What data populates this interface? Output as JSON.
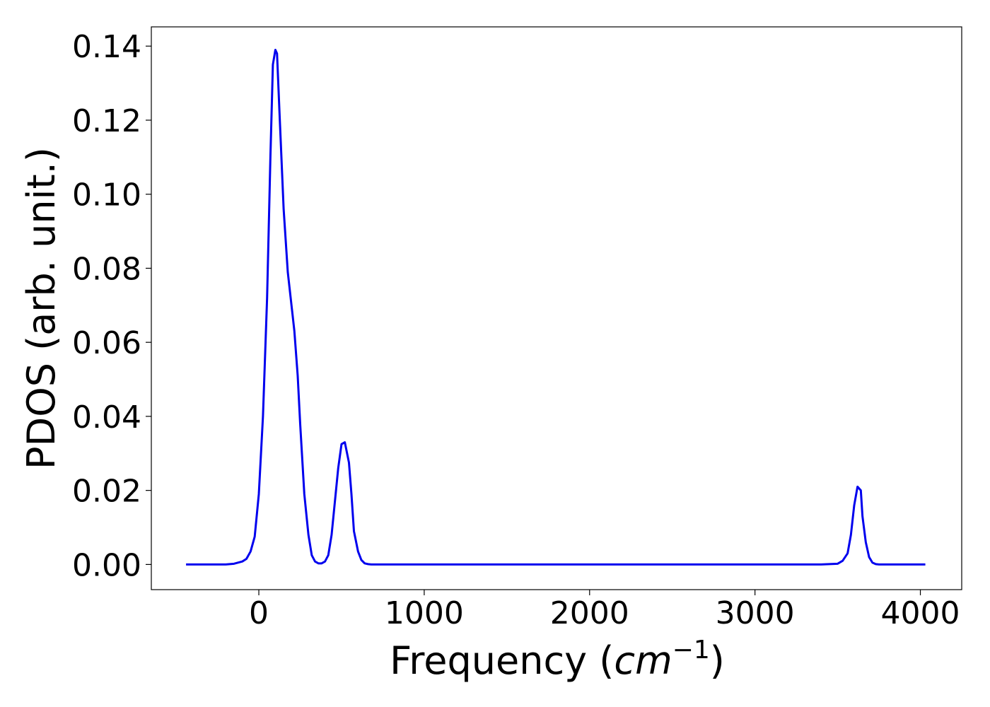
{
  "chart_data": {
    "type": "line",
    "xlabel": "Frequency",
    "xlabel_unit": {
      "open": "(",
      "base": "cm",
      "sup": "−1",
      "close": ")"
    },
    "ylabel": "PDOS (arb. unit.)",
    "xlim": [
      -650,
      4250
    ],
    "ylim": [
      -0.0068,
      0.1452
    ],
    "xticks": [
      0,
      1000,
      2000,
      3000,
      4000
    ],
    "xtick_labels": [
      "0",
      "1000",
      "2000",
      "3000",
      "4000"
    ],
    "yticks": [
      0.0,
      0.02,
      0.04,
      0.06,
      0.08,
      0.1,
      0.12,
      0.14
    ],
    "ytick_labels": [
      "0.00",
      "0.02",
      "0.04",
      "0.06",
      "0.08",
      "0.10",
      "0.12",
      "0.14"
    ],
    "grid": false,
    "legend": "none",
    "series": [
      {
        "color": "#0000ee",
        "x": [
          -440,
          -300,
          -200,
          -150,
          -100,
          -75,
          -50,
          -25,
          0,
          25,
          50,
          70,
          85,
          100,
          110,
          125,
          150,
          175,
          200,
          215,
          235,
          250,
          275,
          300,
          320,
          340,
          360,
          380,
          400,
          420,
          440,
          460,
          480,
          500,
          520,
          545,
          560,
          575,
          600,
          620,
          640,
          660,
          680,
          700,
          720,
          800,
          1000,
          1500,
          2000,
          2500,
          3000,
          3400,
          3500,
          3530,
          3560,
          3580,
          3600,
          3620,
          3640,
          3650,
          3670,
          3690,
          3710,
          3730,
          3750,
          3770,
          3800,
          3900,
          4030
        ],
        "y": [
          0.0,
          0.0,
          0.0,
          0.0002,
          0.0008,
          0.0015,
          0.0035,
          0.0075,
          0.019,
          0.04,
          0.072,
          0.11,
          0.135,
          0.139,
          0.138,
          0.122,
          0.096,
          0.079,
          0.069,
          0.063,
          0.051,
          0.038,
          0.019,
          0.008,
          0.0025,
          0.0008,
          0.0003,
          0.0003,
          0.0008,
          0.0025,
          0.008,
          0.017,
          0.026,
          0.0325,
          0.033,
          0.0275,
          0.019,
          0.009,
          0.0035,
          0.0012,
          0.0003,
          0.0001,
          0.0,
          0.0,
          0.0,
          0.0,
          0.0,
          0.0,
          0.0,
          0.0,
          0.0,
          0.0,
          0.0002,
          0.001,
          0.003,
          0.008,
          0.016,
          0.021,
          0.02,
          0.013,
          0.006,
          0.002,
          0.0005,
          0.0001,
          0.0,
          0.0,
          0.0,
          0.0,
          0.0
        ]
      }
    ]
  }
}
